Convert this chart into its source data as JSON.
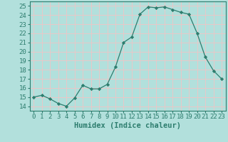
{
  "x": [
    0,
    1,
    2,
    3,
    4,
    5,
    6,
    7,
    8,
    9,
    10,
    11,
    12,
    13,
    14,
    15,
    16,
    17,
    18,
    19,
    20,
    21,
    22,
    23
  ],
  "y": [
    15.0,
    15.2,
    14.8,
    14.3,
    14.0,
    14.9,
    16.3,
    15.9,
    15.9,
    16.4,
    18.3,
    21.0,
    21.6,
    24.1,
    24.9,
    24.8,
    24.9,
    24.6,
    24.3,
    24.1,
    22.0,
    19.4,
    17.9,
    17.0
  ],
  "line_color": "#2d7d6e",
  "marker": "D",
  "marker_size": 2.2,
  "bg_color": "#b2e0dc",
  "grid_color": "#e8c8c8",
  "plot_bg": "#b2e0dc",
  "xlabel": "Humidex (Indice chaleur)",
  "xlim": [
    -0.5,
    23.5
  ],
  "ylim": [
    13.5,
    25.5
  ],
  "yticks": [
    14,
    15,
    16,
    17,
    18,
    19,
    20,
    21,
    22,
    23,
    24,
    25
  ],
  "xticks": [
    0,
    1,
    2,
    3,
    4,
    5,
    6,
    7,
    8,
    9,
    10,
    11,
    12,
    13,
    14,
    15,
    16,
    17,
    18,
    19,
    20,
    21,
    22,
    23
  ],
  "tick_color": "#2d7d6e",
  "axis_color": "#2d7d6e",
  "label_fontsize": 7.5,
  "tick_fontsize": 6.5
}
